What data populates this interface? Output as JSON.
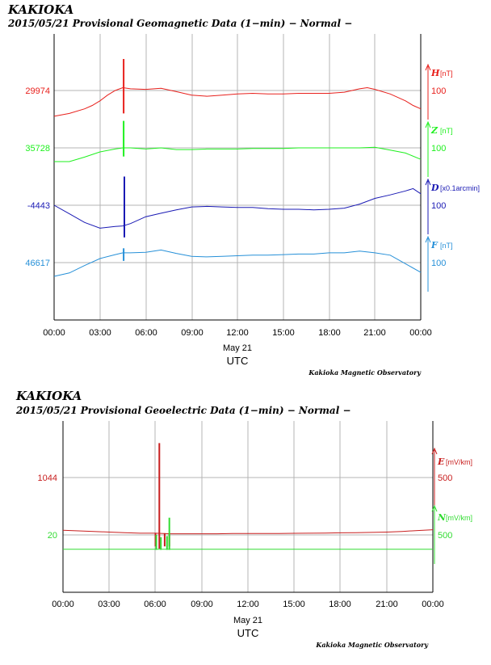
{
  "chart_data": [
    {
      "type": "line",
      "station": "KAKIOKA",
      "title": "2015/05/21  Provisional Geomagnetic Data (1−min)  − Normal −",
      "x_ticks": [
        "00:00",
        "03:00",
        "06:00",
        "09:00",
        "12:00",
        "15:00",
        "18:00",
        "21:00",
        "00:00"
      ],
      "date_label": "May 21",
      "xlabel": "UTC",
      "credit": "Kakioka Magnetic Observatory",
      "xlim": [
        0,
        24
      ],
      "series": [
        {
          "name": "H",
          "unit": "[nT]",
          "color": "#e8201c",
          "baseline": "29974",
          "scale": "100",
          "x": [
            0,
            1,
            2,
            2.5,
            3,
            3.5,
            4,
            4.3,
            4.5,
            5,
            6,
            7,
            8,
            9,
            10,
            11,
            12,
            13,
            14,
            15,
            16,
            17,
            18,
            19,
            19.5,
            20,
            20.5,
            21,
            22,
            23,
            23.5,
            24
          ],
          "values": [
            -45,
            -40,
            -32,
            -26,
            -18,
            -8,
            0,
            3,
            5,
            3,
            2,
            4,
            -2,
            -8,
            -10,
            -8,
            -6,
            -5,
            -6,
            -6,
            -5,
            -5,
            -5,
            -3,
            0,
            3,
            5,
            2,
            -6,
            -18,
            -26,
            -32
          ],
          "spike": {
            "x": 4.55,
            "min": -40,
            "max": 55
          }
        },
        {
          "name": "Z",
          "unit": "[nT]",
          "color": "#1ef01e",
          "baseline": "35728",
          "scale": "100",
          "x": [
            0,
            1,
            2,
            3,
            4,
            4.5,
            5,
            6,
            7,
            8,
            9,
            10,
            11,
            12,
            13,
            14,
            15,
            16,
            17,
            18,
            19,
            20,
            21,
            22,
            23,
            24
          ],
          "values": [
            -24,
            -24,
            -16,
            -7,
            -2,
            0,
            0,
            -2,
            0,
            -3,
            -3,
            -2,
            -2,
            -2,
            -1,
            -1,
            -1,
            0,
            0,
            0,
            0,
            0,
            1,
            -4,
            -9,
            -20
          ],
          "spike": {
            "x": 4.55,
            "min": -15,
            "max": 47
          }
        },
        {
          "name": "D",
          "unit": "[x0.1arcmin]",
          "color": "#1a1ab4",
          "baseline": "-4443",
          "scale": "100",
          "x": [
            0,
            1,
            2,
            3,
            4,
            4.5,
            5,
            6,
            7,
            8,
            9,
            10,
            11,
            12,
            13,
            14,
            15,
            16,
            17,
            18,
            19,
            20,
            21,
            22,
            23,
            23.5,
            24
          ],
          "values": [
            0,
            -15,
            -30,
            -40,
            -37,
            -36,
            -32,
            -20,
            -14,
            -8,
            -3,
            -2,
            -3,
            -4,
            -4,
            -6,
            -7,
            -7,
            -8,
            -7,
            -5,
            2,
            12,
            18,
            25,
            29,
            20
          ],
          "spike": {
            "x": 4.6,
            "min": -56,
            "max": 50
          }
        },
        {
          "name": "F",
          "unit": "[nT]",
          "color": "#2690d8",
          "baseline": "46617",
          "scale": "100",
          "x": [
            0,
            1,
            2,
            3,
            4,
            4.5,
            5,
            6,
            7,
            8,
            9,
            10,
            11,
            12,
            13,
            14,
            15,
            16,
            17,
            18,
            19,
            20,
            21,
            22,
            23,
            24
          ],
          "values": [
            -24,
            -18,
            -5,
            7,
            14,
            17,
            17,
            18,
            22,
            16,
            11,
            10,
            11,
            12,
            13,
            13,
            14,
            15,
            15,
            17,
            17,
            20,
            17,
            13,
            -2,
            -17
          ],
          "spike": {
            "x": 4.55,
            "min": 3,
            "max": 25
          }
        }
      ]
    },
    {
      "type": "line",
      "station": "KAKIOKA",
      "title": "2015/05/21  Provisional Geoelectric Data (1−min)  − Normal −",
      "x_ticks": [
        "00:00",
        "03:00",
        "06:00",
        "09:00",
        "12:00",
        "15:00",
        "18:00",
        "21:00",
        "00:00"
      ],
      "date_label": "May 21",
      "xlabel": "UTC",
      "credit": "Kakioka Magnetic Observatory",
      "xlim": [
        0,
        24
      ],
      "series": [
        {
          "name": "E",
          "unit": "[mV/km]",
          "color": "#c81e1e",
          "baseline": "1044",
          "scale": "500",
          "x": [
            0,
            1,
            2,
            3,
            4,
            5,
            6,
            7,
            8,
            9,
            10,
            11,
            12,
            13,
            14,
            15,
            16,
            17,
            18,
            19,
            20,
            21,
            22,
            23,
            24
          ],
          "values": [
            -460,
            -465,
            -470,
            -475,
            -480,
            -485,
            -485,
            -490,
            -490,
            -490,
            -490,
            -488,
            -488,
            -487,
            -487,
            -486,
            -485,
            -484,
            -482,
            -480,
            -478,
            -475,
            -470,
            -462,
            -455
          ],
          "spikes": [
            {
              "x": 6.0,
              "min": -600,
              "max": -485
            },
            {
              "x": 6.25,
              "min": -620,
              "max": 300
            },
            {
              "x": 6.6,
              "min": -600,
              "max": -485
            },
            {
              "x": 6.9,
              "min": -600,
              "max": -485
            }
          ]
        },
        {
          "name": "N",
          "unit": "[mV/km]",
          "color": "#32dc32",
          "baseline": "20",
          "scale": "500",
          "x": [
            0,
            3,
            6,
            9,
            12,
            15,
            18,
            21,
            24
          ],
          "values": [
            -125,
            -125,
            -125,
            -125,
            -125,
            -125,
            -125,
            -125,
            -125
          ],
          "spikes": [
            {
              "x": 6.05,
              "min": -130,
              "max": 0
            },
            {
              "x": 6.35,
              "min": -130,
              "max": -20
            },
            {
              "x": 6.75,
              "min": -130,
              "max": -10
            },
            {
              "x": 6.9,
              "min": -130,
              "max": 150
            }
          ]
        }
      ]
    }
  ]
}
